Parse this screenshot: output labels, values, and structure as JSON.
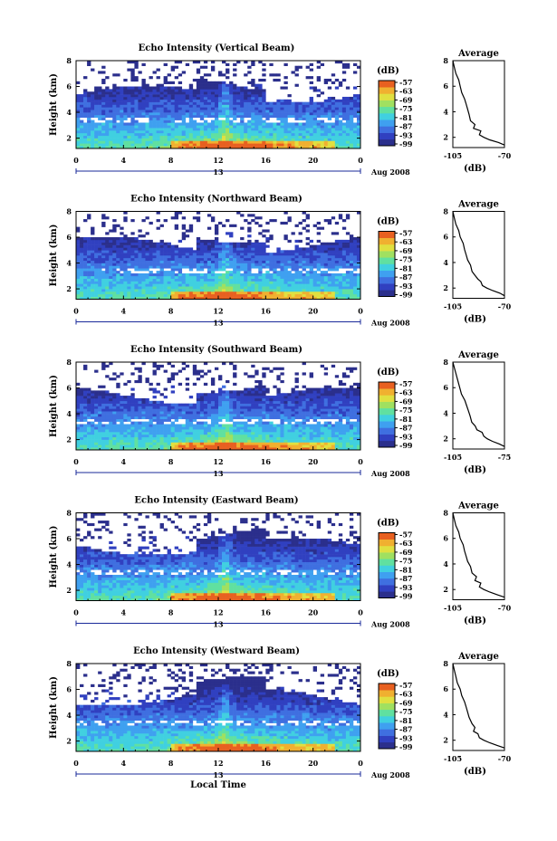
{
  "chart_data": [
    {
      "type": "heatmap",
      "title": "Echo Intensity (Vertical Beam)",
      "ylabel": "Height (km)",
      "yticks": [
        "2",
        "4",
        "6",
        "8"
      ],
      "ylim": [
        1.2,
        8
      ],
      "xticks": [
        "0",
        "4",
        "8",
        "12",
        "16",
        "20",
        "0"
      ],
      "xlim": [
        0,
        24
      ],
      "date_label": "13",
      "date_suffix": "Aug 2008",
      "colorbar": {
        "unit": "(dB)",
        "ticks": [
          "-57",
          "-63",
          "-69",
          "-75",
          "-81",
          "-87",
          "-93",
          "-99"
        ]
      },
      "profile": {
        "title": "Average",
        "xlabel": "(dB)",
        "xticks": [
          "-105",
          "-70"
        ],
        "xlim": [
          -105,
          -70
        ],
        "yticks": [
          "2",
          "4",
          "6",
          "8"
        ],
        "x": [
          -105,
          -104,
          -103,
          -101,
          -100,
          -99,
          -97,
          -96,
          -95,
          -94,
          -93,
          -90,
          -91,
          -86,
          -87,
          -84,
          -80,
          -74,
          -70
        ],
        "y": [
          8,
          7.5,
          7,
          6.5,
          6,
          5.5,
          5,
          4.6,
          4.2,
          3.8,
          3.3,
          3.0,
          2.7,
          2.5,
          2.2,
          2.0,
          1.8,
          1.6,
          1.4
        ]
      }
    },
    {
      "type": "heatmap",
      "title": "Echo Intensity (Northward Beam)",
      "ylabel": "Height (km)",
      "yticks": [
        "2",
        "4",
        "6",
        "8"
      ],
      "ylim": [
        1.2,
        8
      ],
      "xticks": [
        "0",
        "4",
        "8",
        "12",
        "16",
        "20",
        "0"
      ],
      "xlim": [
        0,
        24
      ],
      "date_label": "13",
      "date_suffix": "Aug 2008",
      "colorbar": {
        "unit": "(dB)",
        "ticks": [
          "-57",
          "-63",
          "-69",
          "-75",
          "-81",
          "-87",
          "-93",
          "-99"
        ]
      },
      "profile": {
        "title": "Average",
        "xlabel": "(dB)",
        "xticks": [
          "-105",
          "-70"
        ],
        "xlim": [
          -105,
          -70
        ],
        "yticks": [
          "2",
          "4",
          "6",
          "8"
        ],
        "x": [
          -105,
          -104,
          -103,
          -101,
          -100,
          -98,
          -97,
          -96,
          -95,
          -93,
          -92,
          -90,
          -88,
          -86,
          -85,
          -82,
          -78,
          -73,
          -70
        ],
        "y": [
          8,
          7.5,
          7,
          6.5,
          6,
          5.5,
          5,
          4.6,
          4.2,
          3.8,
          3.3,
          3.0,
          2.7,
          2.5,
          2.2,
          2.0,
          1.8,
          1.6,
          1.4
        ]
      }
    },
    {
      "type": "heatmap",
      "title": "Echo Intensity (Southward Beam)",
      "ylabel": "Height (km)",
      "yticks": [
        "2",
        "4",
        "6",
        "8"
      ],
      "ylim": [
        1.2,
        8
      ],
      "xticks": [
        "0",
        "4",
        "8",
        "12",
        "16",
        "20",
        "0"
      ],
      "xlim": [
        0,
        24
      ],
      "date_label": "13",
      "date_suffix": "Aug 2008",
      "colorbar": {
        "unit": "(dB)",
        "ticks": [
          "-57",
          "-63",
          "-69",
          "-75",
          "-81",
          "-87",
          "-93",
          "-99"
        ]
      },
      "profile": {
        "title": "Average",
        "xlabel": "(dB)",
        "xticks": [
          "-105",
          "-75"
        ],
        "xlim": [
          -105,
          -75
        ],
        "yticks": [
          "2",
          "4",
          "6",
          "8"
        ],
        "x": [
          -105,
          -104,
          -103,
          -102,
          -101,
          -100,
          -98,
          -97,
          -96,
          -95,
          -94,
          -92,
          -91,
          -88,
          -87,
          -85,
          -82,
          -78,
          -75
        ],
        "y": [
          8,
          7.5,
          7,
          6.5,
          6,
          5.5,
          5,
          4.6,
          4.2,
          3.8,
          3.3,
          3.0,
          2.7,
          2.5,
          2.2,
          2.0,
          1.8,
          1.6,
          1.4
        ]
      }
    },
    {
      "type": "heatmap",
      "title": "Echo Intensity (Eastward Beam)",
      "ylabel": "Height (km)",
      "yticks": [
        "2",
        "4",
        "6",
        "8"
      ],
      "ylim": [
        1.2,
        8
      ],
      "xticks": [
        "0",
        "4",
        "8",
        "12",
        "16",
        "20",
        "0"
      ],
      "xlim": [
        0,
        24
      ],
      "date_label": "13",
      "date_suffix": "Aug 2008",
      "colorbar": {
        "unit": "(dB)",
        "ticks": [
          "-57",
          "-63",
          "-69",
          "-75",
          "-81",
          "-87",
          "-93",
          "-99"
        ]
      },
      "profile": {
        "title": "Average",
        "xlabel": "(dB)",
        "xticks": [
          "-105",
          "-70"
        ],
        "xlim": [
          -105,
          -70
        ],
        "yticks": [
          "2",
          "4",
          "6",
          "8"
        ],
        "x": [
          -105,
          -104,
          -103,
          -101,
          -100,
          -98,
          -97,
          -96,
          -95,
          -93,
          -92,
          -89,
          -90,
          -86,
          -87,
          -84,
          -80,
          -75,
          -70
        ],
        "y": [
          8,
          7.5,
          7,
          6.5,
          6,
          5.5,
          5,
          4.6,
          4.2,
          3.8,
          3.3,
          3.0,
          2.7,
          2.5,
          2.2,
          2.0,
          1.8,
          1.6,
          1.4
        ]
      }
    },
    {
      "type": "heatmap",
      "title": "Echo Intensity (Westward Beam)",
      "ylabel": "Height (km)",
      "yticks": [
        "2",
        "4",
        "6",
        "8"
      ],
      "ylim": [
        1.2,
        8
      ],
      "xticks": [
        "0",
        "4",
        "8",
        "12",
        "16",
        "20",
        "0"
      ],
      "xlim": [
        0,
        24
      ],
      "date_label": "13",
      "date_suffix": "Aug 2008",
      "xlabel": "Local Time",
      "colorbar": {
        "unit": "(dB)",
        "ticks": [
          "-57",
          "-63",
          "-69",
          "-75",
          "-81",
          "-87",
          "-93",
          "-99"
        ]
      },
      "profile": {
        "title": "Average",
        "xlabel": "(dB)",
        "xticks": [
          "-105",
          "-70"
        ],
        "xlim": [
          -105,
          -70
        ],
        "yticks": [
          "2",
          "4",
          "6",
          "8"
        ],
        "x": [
          -105,
          -104,
          -103,
          -102,
          -100,
          -99,
          -97,
          -96,
          -95,
          -94,
          -92,
          -90,
          -91,
          -88,
          -87,
          -84,
          -80,
          -75,
          -70
        ],
        "y": [
          8,
          7.5,
          7,
          6.5,
          6,
          5.5,
          5,
          4.6,
          4.2,
          3.8,
          3.3,
          3.0,
          2.7,
          2.5,
          2.2,
          2.0,
          1.8,
          1.6,
          1.4
        ]
      }
    }
  ],
  "colors": {
    "scale": [
      "#2b2f8c",
      "#3040c0",
      "#3f6fe0",
      "#3fa0f0",
      "#40d0e0",
      "#60e0a0",
      "#a0e060",
      "#e0e040",
      "#f0b030",
      "#e86020"
    ]
  }
}
